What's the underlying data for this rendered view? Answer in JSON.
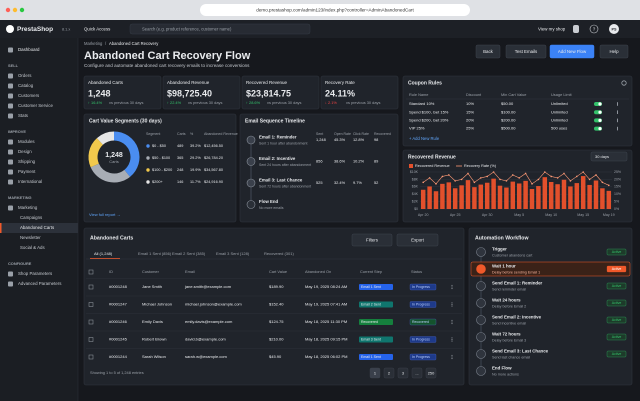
{
  "browser": {
    "url": "demo.prestashop.com/admin123/index.php?controller=AdminAbandonedCart"
  },
  "topbar": {
    "logo": "PrestaShop",
    "version": "8.1.x",
    "quick_access": "Quick Access",
    "search_placeholder": "Search (e.g. product reference, customer name)",
    "view_shop": "View my shop",
    "help": "?",
    "avatar": "PS"
  },
  "sidebar": {
    "dashboard": "Dashboard",
    "sections": [
      {
        "title": "SELL",
        "items": [
          {
            "label": "Orders"
          },
          {
            "label": "Catalog"
          },
          {
            "label": "Customers"
          },
          {
            "label": "Customer Service"
          },
          {
            "label": "Stats"
          }
        ]
      },
      {
        "title": "IMPROVE",
        "items": [
          {
            "label": "Modules"
          },
          {
            "label": "Design"
          },
          {
            "label": "Shipping"
          },
          {
            "label": "Payment"
          },
          {
            "label": "International"
          }
        ]
      },
      {
        "title": "MARKETING",
        "items": [
          {
            "label": "Marketing"
          },
          {
            "label": "Campaigns",
            "sub": true
          },
          {
            "label": "Abandoned Carts",
            "sub": true,
            "active": true
          },
          {
            "label": "Newsletter",
            "sub": true
          },
          {
            "label": "Social & Ads",
            "sub": true
          }
        ]
      },
      {
        "title": "CONFIGURE",
        "items": [
          {
            "label": "Shop Parameters"
          },
          {
            "label": "Advanced Parameters"
          }
        ]
      }
    ]
  },
  "header": {
    "breadcrumb": [
      "Marketing",
      "Abandoned Cart Recovery"
    ],
    "title": "Abandoned Cart Recovery Flow",
    "subtitle": "Configure and automate abandoned cart recovery emails to increase conversions",
    "buttons": [
      {
        "label": "Back"
      },
      {
        "label": "Test Emails"
      },
      {
        "label": "Add New Flow",
        "primary": true
      },
      {
        "label": "Help"
      }
    ]
  },
  "kpis": [
    {
      "label": "Abandoned Carts",
      "value": "1,248",
      "delta": "↑ 16.4%",
      "note": "vs previous 30 days",
      "trend": "up"
    },
    {
      "label": "Abandoned Revenue",
      "value": "$98,725.40",
      "delta": "↑ 22.4%",
      "note": "vs previous 30 days",
      "trend": "up"
    },
    {
      "label": "Recovered Revenue",
      "value": "$23,814.75",
      "delta": "↑ 28.6%",
      "note": "vs previous 30 days",
      "trend": "up"
    },
    {
      "label": "Recovery Rate",
      "value": "24.11%",
      "delta": "↓ 2.1%",
      "note": "vs previous 30 days",
      "trend": "down"
    }
  ],
  "coupons": {
    "title": "Coupon Rules",
    "columns": [
      "Rule Name",
      "Discount",
      "Min Cart Value",
      "Usage Limit"
    ],
    "rows": [
      [
        "Standard 10%",
        "10%",
        "$50.00",
        "Unlimited"
      ],
      [
        "Spend $100, Get 15%",
        "15%",
        "$100.00",
        "Unlimited"
      ],
      [
        "Spend $200, Get 20%",
        "20%",
        "$200.00",
        "Unlimited"
      ],
      [
        "VIP 25%",
        "25%",
        "$500.00",
        "500 uses"
      ]
    ],
    "add": "+ Add New Rule"
  },
  "segments": {
    "title": "Cart Value Segments (30 days)",
    "center_value": "1,248",
    "center_label": "Carts",
    "columns": [
      "Segment",
      "Carts",
      "%",
      "Abandoned Revenue"
    ],
    "colors": [
      "#4a8df0",
      "#a8adb5",
      "#f2c94c",
      "#e6e6e6"
    ],
    "rows": [
      {
        "segment": "$0 - $50",
        "carts": 489,
        "percent": "39.2%",
        "revenue": "$12,456.50"
      },
      {
        "segment": "$50 - $100",
        "carts": 365,
        "percent": "29.2%",
        "revenue": "$26,784.20"
      },
      {
        "segment": "$100 - $200",
        "carts": 248,
        "percent": "19.9%",
        "revenue": "$34,567.80"
      },
      {
        "segment": "$200+",
        "carts": 146,
        "percent": "11.7%",
        "revenue": "$24,916.90"
      }
    ],
    "link": "View full report →"
  },
  "timeline": {
    "title": "Email Sequence Timeline",
    "columns": [
      "Sent",
      "Open Rate",
      "Click Rate",
      "Recovered"
    ],
    "rows": [
      {
        "name": "Email 1: Reminder",
        "desc": "Sent 1 hour after abandonment",
        "stats": [
          "1,248",
          "45.3%",
          "12.8%",
          "98"
        ]
      },
      {
        "name": "Email 2: Incentive",
        "desc": "Sent 24 hours after abandonment",
        "stats": [
          "856",
          "38.6%",
          "10.2%",
          "89"
        ]
      },
      {
        "name": "Email 3: Last Chance",
        "desc": "Sent 72 hours after abandonment",
        "stats": [
          "525",
          "32.4%",
          "9.7%",
          "52"
        ]
      },
      {
        "name": "Flow End",
        "desc": "No more emails",
        "stats": []
      }
    ]
  },
  "revenue_chart": {
    "type": "bar",
    "title": "Recovered Revenue",
    "range": "30 days",
    "categories": [
      "Apr 20",
      null,
      null,
      null,
      null,
      "Apr 25",
      null,
      null,
      null,
      null,
      "Apr 30",
      null,
      null,
      null,
      null,
      "May 5",
      null,
      null,
      null,
      null,
      "May 10",
      null,
      null,
      null,
      null,
      "May 15",
      null,
      null,
      null,
      "May 19"
    ],
    "series": [
      {
        "name": "Recovered Revenue",
        "color": "#e2502c",
        "values": [
          5200,
          6100,
          4800,
          6800,
          7200,
          5600,
          6400,
          7800,
          5900,
          6600,
          7100,
          8200,
          6300,
          5800,
          7400,
          6900,
          7600,
          5400,
          6200,
          8600,
          7300,
          6700,
          7900,
          6100,
          7000,
          8900,
          6500,
          7700,
          5600,
          4900
        ]
      },
      {
        "name": "Recovery Rate (%)",
        "color": "#ff9a76",
        "axis": "y2",
        "values": [
          18,
          21,
          17,
          22,
          23,
          19,
          20,
          24,
          18,
          21,
          22,
          25,
          20,
          19,
          23,
          21,
          24,
          17,
          20,
          25,
          22,
          21,
          24,
          19,
          22,
          25,
          20,
          23,
          18,
          16
        ]
      }
    ],
    "ylim": [
      0,
      10000
    ],
    "yticks": [
      {
        "value": 0,
        "label": "$0"
      },
      {
        "value": 2000,
        "label": "$2K"
      },
      {
        "value": 4000,
        "label": "$4K"
      },
      {
        "value": 6000,
        "label": "$6K"
      },
      {
        "value": 8000,
        "label": "$8K"
      },
      {
        "value": 10000,
        "label": "$10K"
      }
    ],
    "y2lim": [
      0,
      25
    ],
    "y2ticks": [
      {
        "value": 0,
        "label": "0%"
      },
      {
        "value": 5,
        "label": "5%"
      },
      {
        "value": 10,
        "label": "10%"
      },
      {
        "value": 15,
        "label": "15%"
      },
      {
        "value": 20,
        "label": "20%"
      },
      {
        "value": 25,
        "label": "25%"
      }
    ],
    "grid": true
  },
  "carts": {
    "title": "Abandoned Carts",
    "filters": "Filters",
    "export": "Export",
    "tabs": [
      "All (1,248)",
      "Email 1 Sent (856)",
      "Email 2 Sent (385)",
      "Email 3 Sent (128)",
      "Recovered (301)"
    ],
    "columns": [
      "ID",
      "Customer",
      "Email",
      "Cart Value",
      "Abandoned On",
      "Current Step",
      "Status"
    ],
    "rows": [
      {
        "cells": [
          "#0001248",
          "Jane Smith",
          "jane.smith@example.com",
          "$189.90",
          "May 19, 2025 08:24 AM",
          "Email 1 Sent",
          "In Progress"
        ],
        "step_color": "#2563eb",
        "status_color": "#1e3a8a"
      },
      {
        "cells": [
          "#0001247",
          "Michael Johnson",
          "michael.johnson@example.com",
          "$152.40",
          "May 19, 2025 07:41 AM",
          "Email 2 Sent",
          "In Progress"
        ],
        "step_color": "#0f766e",
        "status_color": "#1e3a8a"
      },
      {
        "cells": [
          "#0001246",
          "Emily Davis",
          "emily.davis@example.com",
          "$124.75",
          "May 18, 2025 11:30 PM",
          "Recovered",
          "Recovered"
        ],
        "step_color": "#15803d",
        "status_color": "#14532d"
      },
      {
        "cells": [
          "#0001245",
          "Robert Brown",
          "david.b@example.com",
          "$210.00",
          "May 18, 2025 09:15 PM",
          "Email 3 Sent",
          "In Progress"
        ],
        "step_color": "#0f766e",
        "status_color": "#1e3a8a"
      },
      {
        "cells": [
          "#0001244",
          "Sarah Wilson",
          "sarah.w@example.com",
          "$45.90",
          "May 18, 2025 06:02 PM",
          "Email 1 Sent",
          "In Progress"
        ],
        "step_color": "#2563eb",
        "status_color": "#1e3a8a"
      }
    ],
    "footer": "Showing 1 to 5 of 1,248 entries",
    "pages": [
      "1",
      "2",
      "3",
      "...",
      "250"
    ]
  },
  "workflow": {
    "title": "Automation Workflow",
    "badge": "Active",
    "steps": [
      {
        "name": "Trigger",
        "desc": "Customer abandons cart"
      },
      {
        "name": "Wait 1 hour",
        "desc": "Delay before sending Email 1",
        "highlight": true
      },
      {
        "name": "Send Email 1: Reminder",
        "desc": "Send reminder email"
      },
      {
        "name": "Wait 24 hours",
        "desc": "Delay before Email 2"
      },
      {
        "name": "Send Email 2: Incentive",
        "desc": "Send incentive email"
      },
      {
        "name": "Wait 72 hours",
        "desc": "Delay before Email 3"
      },
      {
        "name": "Send Email 3: Last Chance",
        "desc": "Send last chance email"
      },
      {
        "name": "End Flow",
        "desc": "No more actions",
        "end": true
      }
    ]
  }
}
